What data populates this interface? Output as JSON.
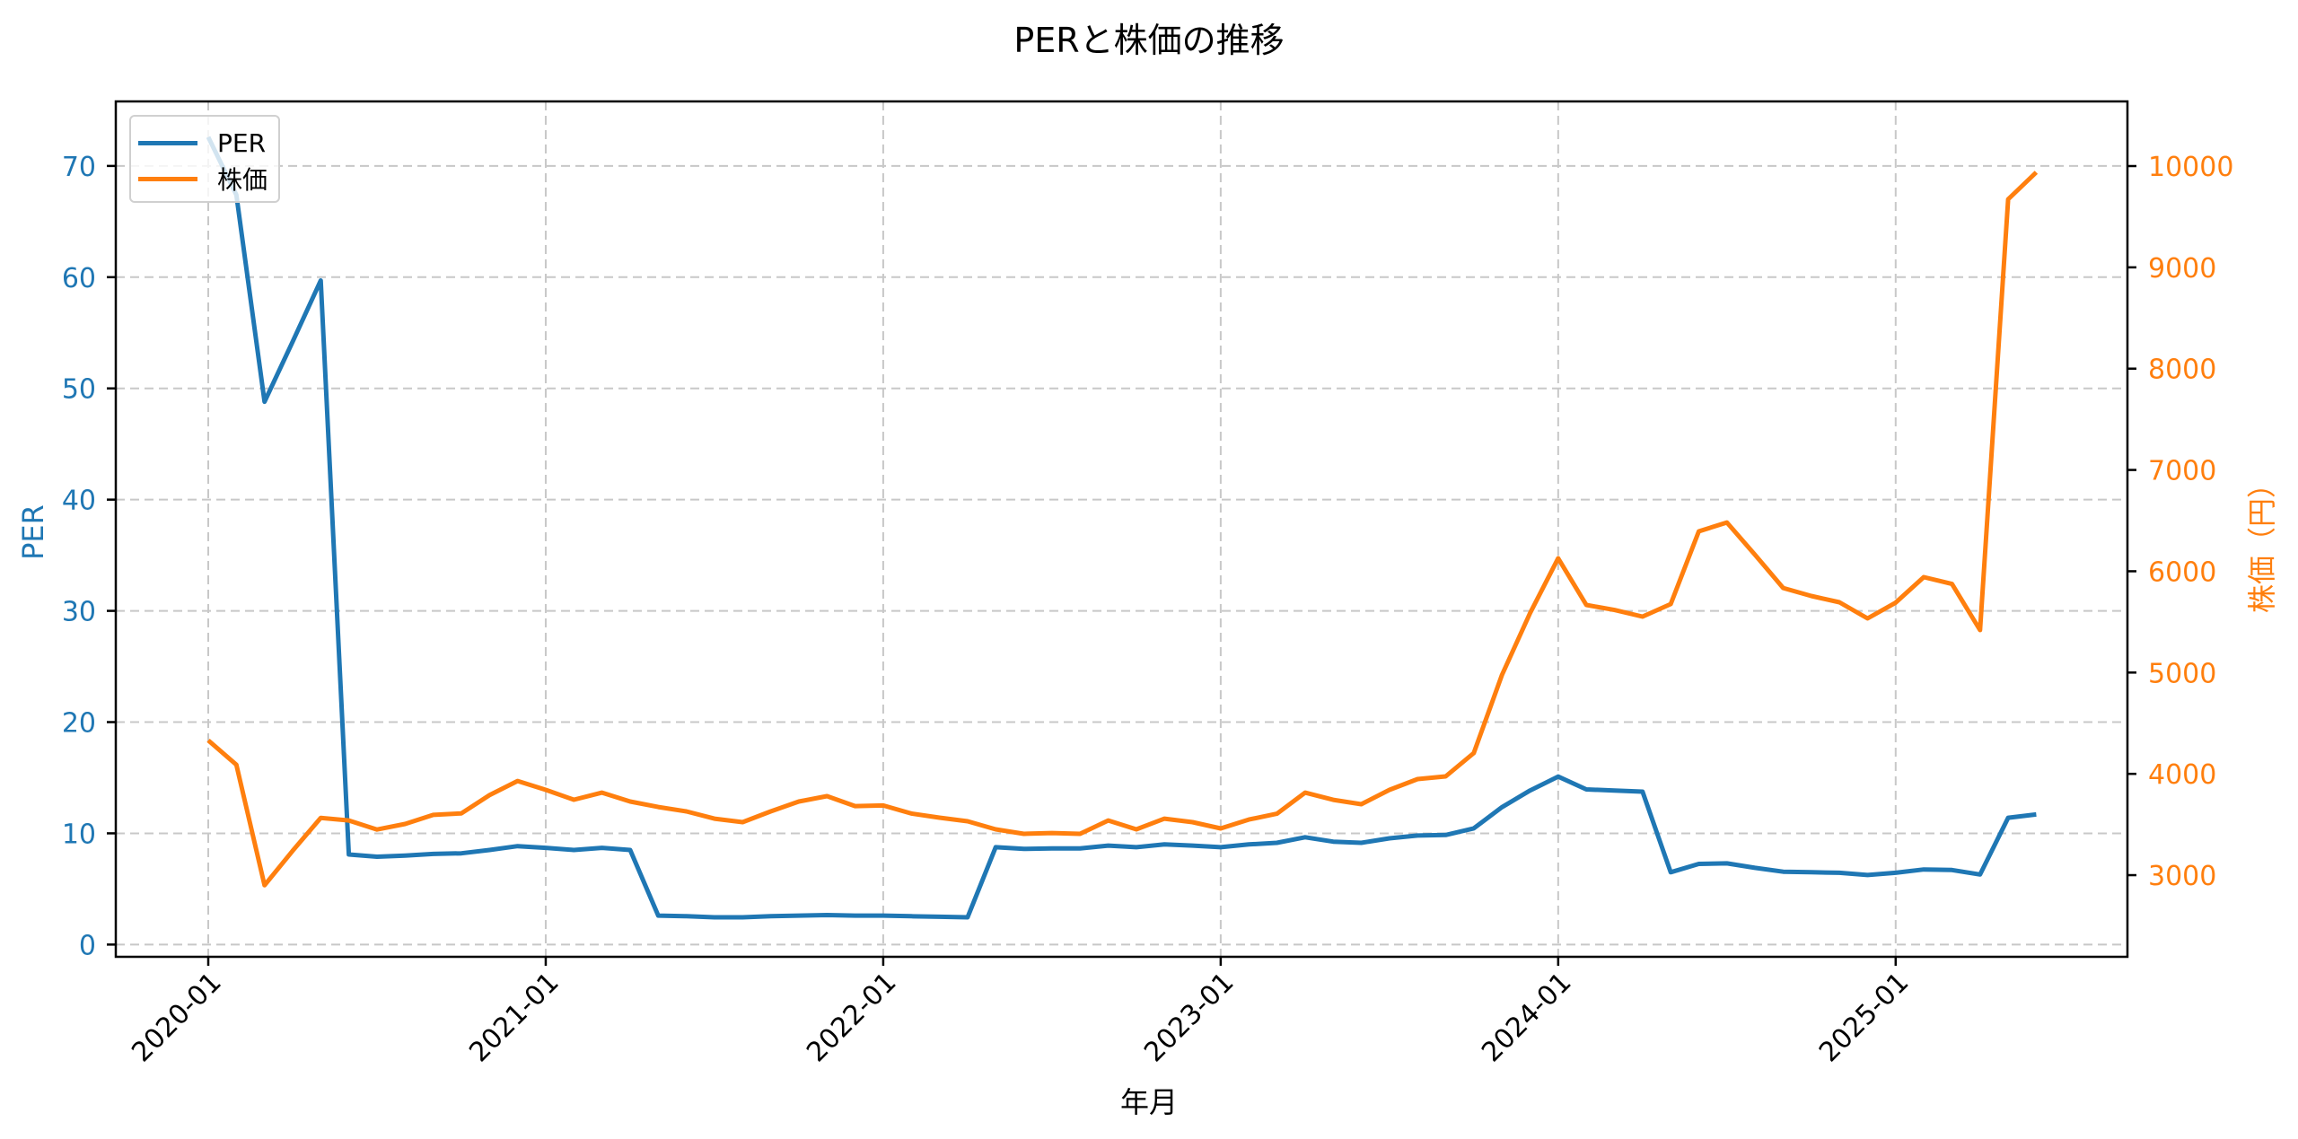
{
  "chart_data": {
    "type": "line",
    "title": "PERと株価の推移",
    "xlabel": "年月",
    "ylabel": "PER",
    "ylabel_right": "株価（円）",
    "legend_position": "upper left",
    "grid": true,
    "x": [
      "2020-01",
      "2020-02",
      "2020-03",
      "2020-04",
      "2020-05",
      "2020-06",
      "2020-07",
      "2020-08",
      "2020-09",
      "2020-10",
      "2020-11",
      "2020-12",
      "2021-01",
      "2021-02",
      "2021-03",
      "2021-04",
      "2021-05",
      "2021-06",
      "2021-07",
      "2021-08",
      "2021-09",
      "2021-10",
      "2021-11",
      "2021-12",
      "2022-01",
      "2022-02",
      "2022-03",
      "2022-04",
      "2022-05",
      "2022-06",
      "2022-07",
      "2022-08",
      "2022-09",
      "2022-10",
      "2022-11",
      "2022-12",
      "2023-01",
      "2023-02",
      "2023-03",
      "2023-04",
      "2023-05",
      "2023-06",
      "2023-07",
      "2023-08",
      "2023-09",
      "2023-10",
      "2023-11",
      "2023-12",
      "2024-01",
      "2024-02",
      "2024-03",
      "2024-04",
      "2024-05",
      "2024-06",
      "2024-07",
      "2024-08",
      "2024-09",
      "2024-10",
      "2024-11",
      "2024-12",
      "2025-01",
      "2025-02",
      "2025-03",
      "2025-04",
      "2025-05",
      "2025-06"
    ],
    "xticks": [
      "2020-01",
      "2021-01",
      "2022-01",
      "2023-01",
      "2024-01",
      "2025-01"
    ],
    "xtick_rotation": 45,
    "series": [
      {
        "name": "PER",
        "axis": "left",
        "color": "#1f77b4",
        "values": [
          72.6,
          67.4,
          48.8,
          54.2,
          59.7,
          8.1,
          7.9,
          8.0,
          8.15,
          8.2,
          8.5,
          8.85,
          8.7,
          8.5,
          8.7,
          8.5,
          2.6,
          2.55,
          2.45,
          2.45,
          2.55,
          2.6,
          2.65,
          2.6,
          2.6,
          2.55,
          2.5,
          2.45,
          8.75,
          8.6,
          8.65,
          8.65,
          8.9,
          8.75,
          9.0,
          8.9,
          8.75,
          9.0,
          9.15,
          9.65,
          9.25,
          9.15,
          9.55,
          9.8,
          9.85,
          10.45,
          12.35,
          13.85,
          15.1,
          13.95,
          13.85,
          13.75,
          6.5,
          7.25,
          7.3,
          6.9,
          6.55,
          6.5,
          6.45,
          6.25,
          6.45,
          6.75,
          6.7,
          6.3,
          11.4,
          11.7
        ]
      },
      {
        "name": "株価",
        "axis": "right",
        "color": "#ff7f0e",
        "values": [
          4330,
          4090,
          2900,
          3240,
          3565,
          3540,
          3450,
          3505,
          3595,
          3610,
          3790,
          3930,
          3842,
          3745,
          3815,
          3727,
          3673,
          3629,
          3558,
          3523,
          3629,
          3727,
          3780,
          3682,
          3688,
          3608,
          3567,
          3532,
          3452,
          3408,
          3416,
          3408,
          3540,
          3452,
          3558,
          3523,
          3461,
          3549,
          3606,
          3815,
          3744,
          3700,
          3842,
          3948,
          3975,
          4205,
          4976,
          5587,
          6128,
          5667,
          5618,
          5552,
          5676,
          6394,
          6482,
          6163,
          5835,
          5756,
          5694,
          5534,
          5690,
          5942,
          5875,
          5419,
          9672,
          9938
        ]
      }
    ],
    "ylim": [
      -1.1,
      75.8
    ],
    "ylim_right": [
      2194,
      10638
    ],
    "yticks": [
      0,
      10,
      20,
      30,
      40,
      50,
      60,
      70
    ],
    "yticks_right": [
      3000,
      4000,
      5000,
      6000,
      7000,
      8000,
      9000,
      10000
    ]
  },
  "legend": {
    "items": [
      {
        "label": "PER",
        "color": "#1f77b4"
      },
      {
        "label": "株価",
        "color": "#ff7f0e"
      }
    ]
  },
  "colors": {
    "per": "#1f77b4",
    "price": "#ff7f0e",
    "grid": "#c8c8c8",
    "axis": "#000000"
  }
}
